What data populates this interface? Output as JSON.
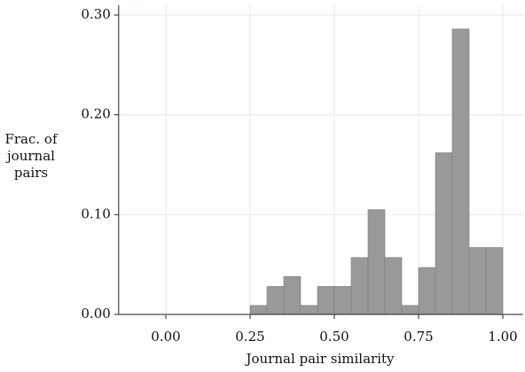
{
  "chart_data": {
    "type": "histogram",
    "x_label": "Journal pair similarity",
    "y_label": "Frac. of journal pairs",
    "bins": [
      0.25,
      0.3,
      0.35,
      0.4,
      0.45,
      0.5,
      0.55,
      0.6,
      0.65,
      0.7,
      0.75,
      0.8,
      0.85,
      0.9,
      0.95,
      1.0
    ],
    "values": [
      0.009,
      0.028,
      0.038,
      0.009,
      0.028,
      0.028,
      0.057,
      0.105,
      0.057,
      0.009,
      0.047,
      0.162,
      0.286,
      0.067,
      0.067
    ],
    "color": "#999999",
    "edge_color": "#7a7a7a",
    "xlim": [
      -0.14,
      1.06
    ],
    "ylim": [
      0,
      0.31
    ],
    "xticks": [
      {
        "value": 0,
        "label": "0.00"
      },
      {
        "value": 0.25,
        "label": "0.25"
      },
      {
        "value": 0.5,
        "label": "0.50"
      },
      {
        "value": 0.75,
        "label": "0.75"
      },
      {
        "value": 1,
        "label": "1.00"
      }
    ],
    "yticks": [
      {
        "value": 0,
        "label": "0.00"
      },
      {
        "value": 0.1,
        "label": "0.10"
      },
      {
        "value": 0.2,
        "label": "0.20"
      },
      {
        "value": 0.3,
        "label": "0.30"
      }
    ],
    "grid": true
  }
}
